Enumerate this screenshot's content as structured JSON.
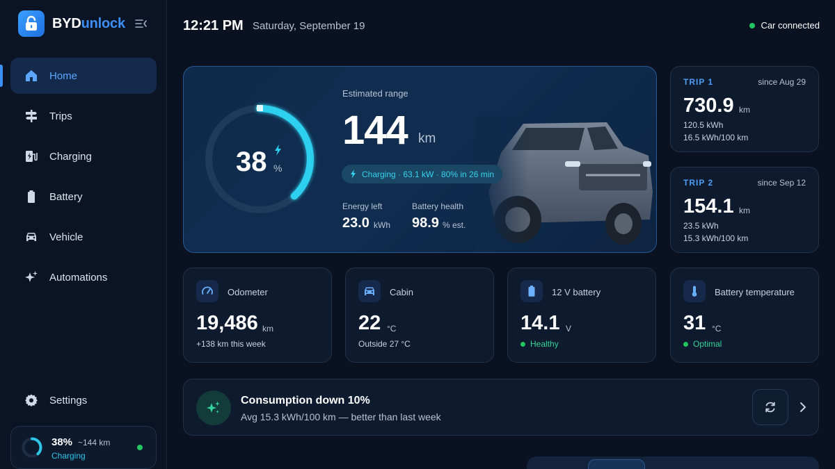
{
  "brand": {
    "name_a": "BYD",
    "name_b": "unlock"
  },
  "nav": {
    "items": [
      {
        "label": "Home",
        "icon": "home-icon",
        "active": true
      },
      {
        "label": "Trips",
        "icon": "signpost-icon"
      },
      {
        "label": "Charging",
        "icon": "charging-station-icon"
      },
      {
        "label": "Battery",
        "icon": "battery-icon"
      },
      {
        "label": "Vehicle",
        "icon": "car-icon"
      },
      {
        "label": "Automations",
        "icon": "sparkles-icon"
      }
    ],
    "settings": "Settings"
  },
  "mini_status": {
    "percent": "38%",
    "range": "~144 km",
    "state": "Charging",
    "level": 0.38
  },
  "header": {
    "time": "12:21 PM",
    "date": "Saturday, September 19",
    "connection": "Car connected"
  },
  "hero": {
    "battery_percent": "38",
    "percent_unit": "%",
    "battery_level": 0.38,
    "range_label": "Estimated range",
    "range_value": "144",
    "range_unit": "km",
    "charging_text": "Charging · 63.1 kW · 80% in 26 min",
    "energy_left_label": "Energy left",
    "energy_left_value": "23.0",
    "energy_left_unit": "kWh",
    "battery_health_label": "Battery health",
    "battery_health_value": "98.9",
    "battery_health_unit": "%  est."
  },
  "trips": [
    {
      "tag": "TRIP 1",
      "since": "since Aug 29",
      "distance": "730.9",
      "unit": "km",
      "energy": "120.5 kWh",
      "efficiency": "16.5 kWh/100 km"
    },
    {
      "tag": "TRIP 2",
      "since": "since Sep 12",
      "distance": "154.1",
      "unit": "km",
      "energy": "23.5 kWh",
      "efficiency": "15.3 kWh/100 km"
    }
  ],
  "stats": [
    {
      "label": "Odometer",
      "value": "19,486",
      "unit": "km",
      "sub": "+138 km this week",
      "icon": "speedometer-icon"
    },
    {
      "label": "Cabin",
      "value": "22",
      "unit": "°C",
      "sub": "Outside 27 °C",
      "icon": "car-front-icon"
    },
    {
      "label": "12 V battery",
      "value": "14.1",
      "unit": "V",
      "sub": "Healthy",
      "icon": "battery-icon"
    },
    {
      "label": "Battery temperature",
      "value": "31",
      "unit": "°C",
      "sub": "Optimal",
      "icon": "thermometer-icon"
    }
  ],
  "insight": {
    "title": "Consumption down 10%",
    "subtitle": "Avg 15.3 kWh/100 km — better than last week"
  },
  "colors": {
    "accent": "#3b8ff5",
    "gauge": "#2ec4e6",
    "success": "#22c55e",
    "background": "#0a1120"
  }
}
